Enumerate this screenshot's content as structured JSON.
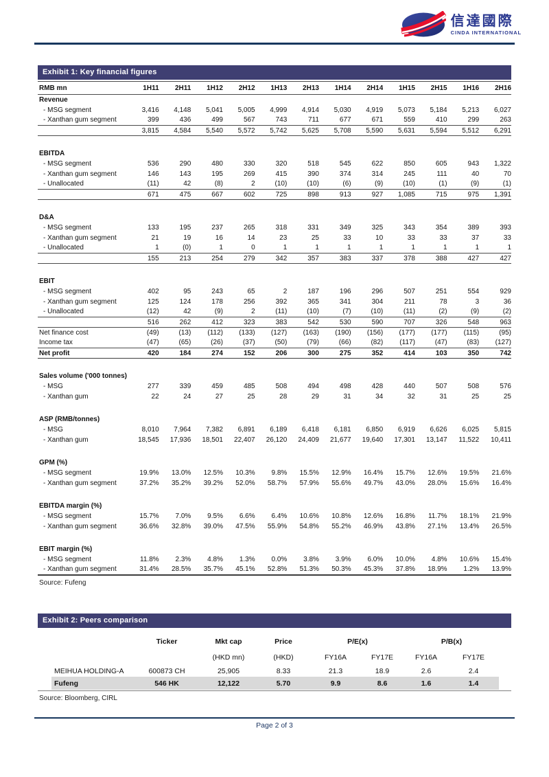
{
  "colors": {
    "bar": "#3f3f72",
    "navy": "#17375e",
    "pagetext": "#1f3864",
    "hl": "#d9d9d9",
    "logo_blue": "#2b3990",
    "logo_red": "#e8112d"
  },
  "brand": {
    "name_cn": "信達國際",
    "name_en": "CINDA INTERNATIONAL"
  },
  "footer": {
    "page_label": "Page 2 of 3"
  },
  "exhibit1": {
    "title": "Exhibit 1: Key financial figures",
    "unit_label": "RMB mn",
    "periods": [
      "1H11",
      "2H11",
      "1H12",
      "2H12",
      "1H13",
      "2H13",
      "1H14",
      "2H14",
      "1H15",
      "2H15",
      "1H16",
      "2H16"
    ],
    "source": "Source: Fufeng",
    "rows": [
      {
        "t": "sec",
        "label": "Revenue"
      },
      {
        "t": "d",
        "label": "- MSG segment",
        "v": [
          "3,416",
          "4,148",
          "5,041",
          "5,005",
          "4,999",
          "4,914",
          "5,030",
          "4,919",
          "5,073",
          "5,184",
          "5,213",
          "6,027"
        ]
      },
      {
        "t": "d",
        "label": "- Xanthan gum segment",
        "v": [
          "399",
          "436",
          "499",
          "567",
          "743",
          "711",
          "677",
          "671",
          "559",
          "410",
          "299",
          "263"
        ]
      },
      {
        "t": "tot",
        "label": "",
        "v": [
          "3,815",
          "4,584",
          "5,540",
          "5,572",
          "5,742",
          "5,625",
          "5,708",
          "5,590",
          "5,631",
          "5,594",
          "5,512",
          "6,291"
        ]
      },
      {
        "t": "gap"
      },
      {
        "t": "sec",
        "label": "EBITDA"
      },
      {
        "t": "d",
        "label": "- MSG segment",
        "v": [
          "536",
          "290",
          "480",
          "330",
          "320",
          "518",
          "545",
          "622",
          "850",
          "605",
          "943",
          "1,322"
        ]
      },
      {
        "t": "d",
        "label": "- Xanthan gum segment",
        "v": [
          "146",
          "143",
          "195",
          "269",
          "415",
          "390",
          "374",
          "314",
          "245",
          "111",
          "40",
          "70"
        ]
      },
      {
        "t": "d",
        "label": "- Unallocated",
        "v": [
          "(11)",
          "42",
          "(8)",
          "2",
          "(10)",
          "(10)",
          "(6)",
          "(9)",
          "(10)",
          "(1)",
          "(9)",
          "(1)"
        ]
      },
      {
        "t": "tot",
        "label": "",
        "v": [
          "671",
          "475",
          "667",
          "602",
          "725",
          "898",
          "913",
          "927",
          "1,085",
          "715",
          "975",
          "1,391"
        ]
      },
      {
        "t": "gap"
      },
      {
        "t": "sec",
        "label": "D&A"
      },
      {
        "t": "d",
        "label": "- MSG segment",
        "v": [
          "133",
          "195",
          "237",
          "265",
          "318",
          "331",
          "349",
          "325",
          "343",
          "354",
          "389",
          "393"
        ]
      },
      {
        "t": "d",
        "label": "- Xanthan gum segment",
        "v": [
          "21",
          "19",
          "16",
          "14",
          "23",
          "25",
          "33",
          "10",
          "33",
          "33",
          "37",
          "33"
        ]
      },
      {
        "t": "d",
        "label": "- Unallocated",
        "v": [
          "1",
          "(0)",
          "1",
          "0",
          "1",
          "1",
          "1",
          "1",
          "1",
          "1",
          "1",
          "1"
        ]
      },
      {
        "t": "tot",
        "label": "",
        "v": [
          "155",
          "213",
          "254",
          "279",
          "342",
          "357",
          "383",
          "337",
          "378",
          "388",
          "427",
          "427"
        ]
      },
      {
        "t": "gap"
      },
      {
        "t": "sec",
        "label": "EBIT"
      },
      {
        "t": "d",
        "label": "- MSG segment",
        "v": [
          "402",
          "95",
          "243",
          "65",
          "2",
          "187",
          "196",
          "296",
          "507",
          "251",
          "554",
          "929"
        ]
      },
      {
        "t": "d",
        "label": "- Xanthan gum segment",
        "v": [
          "125",
          "124",
          "178",
          "256",
          "392",
          "365",
          "341",
          "304",
          "211",
          "78",
          "3",
          "36"
        ]
      },
      {
        "t": "d",
        "label": "- Unallocated",
        "v": [
          "(12)",
          "42",
          "(9)",
          "2",
          "(11)",
          "(10)",
          "(7)",
          "(10)",
          "(11)",
          "(2)",
          "(9)",
          "(2)"
        ]
      },
      {
        "t": "tot",
        "label": "",
        "v": [
          "516",
          "262",
          "412",
          "323",
          "383",
          "542",
          "530",
          "590",
          "707",
          "326",
          "548",
          "963"
        ]
      },
      {
        "t": "d",
        "flush": true,
        "label": "Net finance cost",
        "v": [
          "(49)",
          "(13)",
          "(112)",
          "(133)",
          "(127)",
          "(163)",
          "(190)",
          "(156)",
          "(177)",
          "(177)",
          "(115)",
          "(95)"
        ]
      },
      {
        "t": "d",
        "flush": true,
        "label": "Income tax",
        "v": [
          "(47)",
          "(65)",
          "(26)",
          "(37)",
          "(50)",
          "(79)",
          "(66)",
          "(82)",
          "(117)",
          "(47)",
          "(83)",
          "(127)"
        ]
      },
      {
        "t": "net",
        "label": "Net profit",
        "v": [
          "420",
          "184",
          "274",
          "152",
          "206",
          "300",
          "275",
          "352",
          "414",
          "103",
          "350",
          "742"
        ]
      },
      {
        "t": "gap"
      },
      {
        "t": "sec",
        "label": "Sales volume ('000 tonnes)"
      },
      {
        "t": "d",
        "label": "- MSG",
        "v": [
          "277",
          "339",
          "459",
          "485",
          "508",
          "494",
          "498",
          "428",
          "440",
          "507",
          "508",
          "576"
        ]
      },
      {
        "t": "d",
        "label": "- Xanthan gum",
        "v": [
          "22",
          "24",
          "27",
          "25",
          "28",
          "29",
          "31",
          "34",
          "32",
          "31",
          "25",
          "25"
        ]
      },
      {
        "t": "gap"
      },
      {
        "t": "sec",
        "label": "ASP (RMB/tonnes)"
      },
      {
        "t": "d",
        "label": "- MSG",
        "v": [
          "8,010",
          "7,964",
          "7,382",
          "6,891",
          "6,189",
          "6,418",
          "6,181",
          "6,850",
          "6,919",
          "6,626",
          "6,025",
          "5,815"
        ]
      },
      {
        "t": "d",
        "label": "- Xanthan gum",
        "v": [
          "18,545",
          "17,936",
          "18,501",
          "22,407",
          "26,120",
          "24,409",
          "21,677",
          "19,640",
          "17,301",
          "13,147",
          "11,522",
          "10,411"
        ]
      },
      {
        "t": "gap"
      },
      {
        "t": "sec",
        "label": "GPM (%)"
      },
      {
        "t": "d",
        "label": "- MSG segment",
        "v": [
          "19.9%",
          "13.0%",
          "12.5%",
          "10.3%",
          "9.8%",
          "15.5%",
          "12.9%",
          "16.4%",
          "15.7%",
          "12.6%",
          "19.5%",
          "21.6%"
        ]
      },
      {
        "t": "d",
        "label": "- Xanthan gum segment",
        "v": [
          "37.2%",
          "35.2%",
          "39.2%",
          "52.0%",
          "58.7%",
          "57.9%",
          "55.6%",
          "49.7%",
          "43.0%",
          "28.0%",
          "15.6%",
          "16.4%"
        ]
      },
      {
        "t": "gap"
      },
      {
        "t": "sec",
        "label": "EBITDA margin (%)"
      },
      {
        "t": "d",
        "label": "- MSG segment",
        "v": [
          "15.7%",
          "7.0%",
          "9.5%",
          "6.6%",
          "6.4%",
          "10.6%",
          "10.8%",
          "12.6%",
          "16.8%",
          "11.7%",
          "18.1%",
          "21.9%"
        ]
      },
      {
        "t": "d",
        "label": "- Xanthan gum segment",
        "v": [
          "36.6%",
          "32.8%",
          "39.0%",
          "47.5%",
          "55.9%",
          "54.8%",
          "55.2%",
          "46.9%",
          "43.8%",
          "27.1%",
          "13.4%",
          "26.5%"
        ]
      },
      {
        "t": "gap"
      },
      {
        "t": "sec",
        "label": "EBIT margin (%)"
      },
      {
        "t": "d",
        "label": "- MSG segment",
        "v": [
          "11.8%",
          "2.3%",
          "4.8%",
          "1.3%",
          "0.0%",
          "3.8%",
          "3.9%",
          "6.0%",
          "10.0%",
          "4.8%",
          "10.6%",
          "15.4%"
        ]
      },
      {
        "t": "d",
        "label": "- Xanthan gum segment",
        "v": [
          "31.4%",
          "28.5%",
          "35.7%",
          "45.1%",
          "52.8%",
          "51.3%",
          "50.3%",
          "45.3%",
          "37.8%",
          "18.9%",
          "1.2%",
          "13.9%"
        ]
      }
    ]
  },
  "exhibit2": {
    "title": "Exhibit 2: Peers comparison",
    "group_headers": {
      "ticker": "Ticker",
      "mktcap": "Mkt cap",
      "price": "Price",
      "pe": "P/E(x)",
      "pb": "P/B(x)"
    },
    "sub_headers": [
      "",
      "",
      "(HKD mn)",
      "(HKD)",
      "FY16A",
      "FY17E",
      "FY16A",
      "FY17E"
    ],
    "rows": [
      {
        "name": "MEIHUA HOLDING-A",
        "cells": [
          "600873 CH",
          "25,905",
          "8.33",
          "21.3",
          "18.9",
          "2.6",
          "2.4"
        ],
        "highlight": false
      },
      {
        "name": "Fufeng",
        "cells": [
          "546 HK",
          "12,122",
          "5.70",
          "9.9",
          "8.6",
          "1.6",
          "1.4"
        ],
        "highlight": true
      }
    ],
    "source": "Source: Bloomberg, CIRL"
  }
}
